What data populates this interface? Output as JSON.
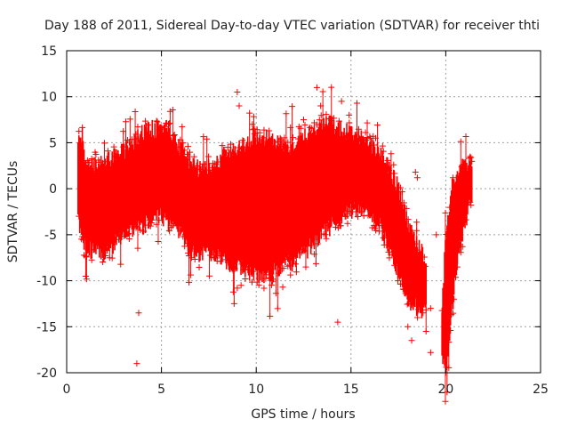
{
  "chart_data": {
    "type": "scatter",
    "title": "Day 188 of 2011, Sidereal Day-to-day VTEC variation (SDTVAR) for receiver thti",
    "xlabel": "GPS time / hours",
    "ylabel": "SDTVAR / TECUs",
    "xlim": [
      0,
      25
    ],
    "ylim": [
      -20,
      15
    ],
    "xticks": [
      0,
      5,
      10,
      15,
      20,
      25
    ],
    "yticks": [
      -20,
      -15,
      -10,
      -5,
      0,
      5,
      10,
      15
    ],
    "grid": true,
    "marker": "+",
    "color": "#ff0000",
    "series": [
      {
        "name": "SDTVAR",
        "envelope": [
          {
            "x": 0.6,
            "lo": -3,
            "hi": 5
          },
          {
            "x": 0.8,
            "lo": -5,
            "hi": 6
          },
          {
            "x": 1.0,
            "lo": -6.5,
            "hi": 3
          },
          {
            "x": 1.5,
            "lo": -7,
            "hi": 2.5
          },
          {
            "x": 2.0,
            "lo": -7,
            "hi": 3
          },
          {
            "x": 2.5,
            "lo": -6,
            "hi": 3.5
          },
          {
            "x": 3.0,
            "lo": -5.5,
            "hi": 4
          },
          {
            "x": 3.5,
            "lo": -4.5,
            "hi": 5
          },
          {
            "x": 4.0,
            "lo": -4,
            "hi": 6
          },
          {
            "x": 4.5,
            "lo": -3.5,
            "hi": 6.5
          },
          {
            "x": 5.0,
            "lo": -3,
            "hi": 6.5
          },
          {
            "x": 5.5,
            "lo": -4,
            "hi": 6
          },
          {
            "x": 6.0,
            "lo": -5,
            "hi": 4.5
          },
          {
            "x": 6.5,
            "lo": -6.5,
            "hi": 3
          },
          {
            "x": 7.0,
            "lo": -7,
            "hi": 2
          },
          {
            "x": 7.5,
            "lo": -7,
            "hi": 2.5
          },
          {
            "x": 8.0,
            "lo": -7.5,
            "hi": 3
          },
          {
            "x": 8.5,
            "lo": -8,
            "hi": 4
          },
          {
            "x": 9.0,
            "lo": -8.5,
            "hi": 4.5
          },
          {
            "x": 9.5,
            "lo": -9,
            "hi": 5
          },
          {
            "x": 10.0,
            "lo": -9,
            "hi": 5.5
          },
          {
            "x": 10.5,
            "lo": -9.5,
            "hi": 5.5
          },
          {
            "x": 11.0,
            "lo": -9,
            "hi": 5
          },
          {
            "x": 11.5,
            "lo": -8.5,
            "hi": 4.5
          },
          {
            "x": 12.0,
            "lo": -8,
            "hi": 4.5
          },
          {
            "x": 12.5,
            "lo": -7,
            "hi": 5.5
          },
          {
            "x": 13.0,
            "lo": -6,
            "hi": 6.5
          },
          {
            "x": 13.5,
            "lo": -5,
            "hi": 7
          },
          {
            "x": 14.0,
            "lo": -4,
            "hi": 7
          },
          {
            "x": 14.5,
            "lo": -3,
            "hi": 6.5
          },
          {
            "x": 15.0,
            "lo": -2.5,
            "hi": 6
          },
          {
            "x": 15.5,
            "lo": -2,
            "hi": 5.5
          },
          {
            "x": 16.0,
            "lo": -2.5,
            "hi": 5
          },
          {
            "x": 16.5,
            "lo": -4,
            "hi": 4
          },
          {
            "x": 17.0,
            "lo": -6.5,
            "hi": 2.5
          },
          {
            "x": 17.5,
            "lo": -9,
            "hi": 0
          },
          {
            "x": 18.0,
            "lo": -12,
            "hi": -4
          },
          {
            "x": 18.5,
            "lo": -13,
            "hi": -6
          },
          {
            "x": 18.8,
            "lo": -13.5,
            "hi": -7
          },
          {
            "x": 19.0,
            "lo": -12,
            "hi": -8
          }
        ],
        "envelope2": [
          {
            "x": 19.8,
            "lo": -19,
            "hi": -13
          },
          {
            "x": 20.0,
            "lo": -19.5,
            "hi": -5
          },
          {
            "x": 20.3,
            "lo": -14,
            "hi": 0
          },
          {
            "x": 20.6,
            "lo": -8,
            "hi": 2
          },
          {
            "x": 21.0,
            "lo": -4,
            "hi": 2.5
          },
          {
            "x": 21.4,
            "lo": -1,
            "hi": 2.5
          }
        ],
        "outliers": [
          {
            "x": 3.7,
            "y": -19
          },
          {
            "x": 3.8,
            "y": -13.5
          },
          {
            "x": 7.2,
            "y": 1.5
          },
          {
            "x": 8.5,
            "y": 4.5
          },
          {
            "x": 9.0,
            "y": 10.5
          },
          {
            "x": 9.1,
            "y": 9.0
          },
          {
            "x": 9.0,
            "y": -10.8
          },
          {
            "x": 9.2,
            "y": -10.5
          },
          {
            "x": 9.8,
            "y": 7.0
          },
          {
            "x": 9.9,
            "y": 6.5
          },
          {
            "x": 10.5,
            "y": 4.5
          },
          {
            "x": 11.4,
            "y": -10.7
          },
          {
            "x": 12.5,
            "y": 7.5
          },
          {
            "x": 13.2,
            "y": 11.0
          },
          {
            "x": 13.4,
            "y": 9.0
          },
          {
            "x": 14.3,
            "y": -14.5
          },
          {
            "x": 14.5,
            "y": 9.5
          },
          {
            "x": 14.9,
            "y": 8.0
          },
          {
            "x": 16.3,
            "y": 5.5
          },
          {
            "x": 17.0,
            "y": 2.0
          },
          {
            "x": 18.0,
            "y": -15.0
          },
          {
            "x": 18.2,
            "y": -16.5
          },
          {
            "x": 18.4,
            "y": 1.8
          },
          {
            "x": 18.5,
            "y": 1.2
          },
          {
            "x": 18.8,
            "y": -13.5
          },
          {
            "x": 19.2,
            "y": -13.0
          },
          {
            "x": 19.2,
            "y": -17.8
          },
          {
            "x": 19.5,
            "y": -5.0
          },
          {
            "x": 20.0,
            "y": -20.0
          }
        ]
      }
    ]
  }
}
